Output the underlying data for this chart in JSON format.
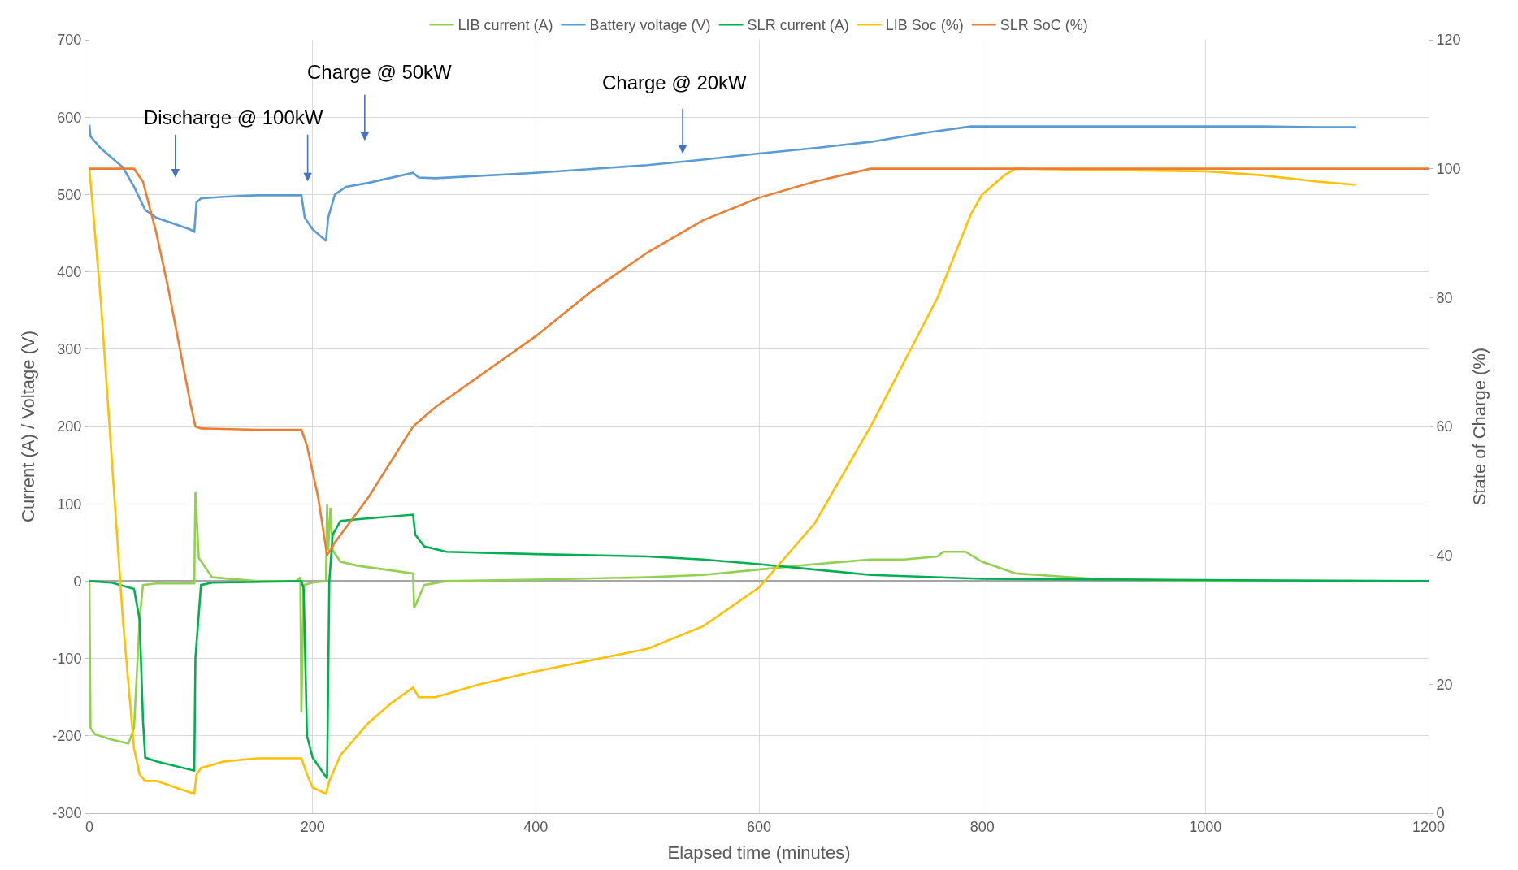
{
  "chart_data": {
    "type": "line",
    "xlabel": "Elapsed time (minutes)",
    "ylabel": "Current (A) / Voltage (V)",
    "y2label": "State of Charge (%)",
    "xlim": [
      0,
      1200
    ],
    "xticks": [
      0,
      200,
      400,
      600,
      800,
      1000,
      1200
    ],
    "ylim": [
      -300,
      700
    ],
    "yticks": [
      -300,
      -200,
      -100,
      0,
      100,
      200,
      300,
      400,
      500,
      600,
      700
    ],
    "y2lim": [
      0,
      120
    ],
    "y2ticks": [
      0,
      20,
      40,
      60,
      80,
      100,
      120
    ],
    "grid": true,
    "legend": "top",
    "line_style": "solid",
    "marker": "none",
    "series": [
      {
        "name": "LIB current (A)",
        "color": "#92d050",
        "x": [
          0,
          1,
          5,
          20,
          35,
          40,
          45,
          48,
          60,
          94,
          95,
          98,
          110,
          150,
          185,
          189,
          190,
          192,
          200,
          212,
          213,
          214,
          216,
          218,
          225,
          240,
          290,
          291,
          300,
          320,
          400,
          500,
          550,
          600,
          650,
          700,
          730,
          760,
          765,
          785,
          800,
          830,
          900,
          1000,
          1135
        ],
        "values": [
          0,
          -190,
          -198,
          -205,
          -210,
          -190,
          -50,
          -5,
          -3,
          -3,
          115,
          30,
          5,
          0,
          0,
          5,
          -170,
          -5,
          -2,
          0,
          100,
          40,
          95,
          40,
          25,
          20,
          10,
          -35,
          -5,
          0,
          2,
          5,
          8,
          15,
          22,
          28,
          28,
          32,
          38,
          38,
          25,
          10,
          3,
          0,
          0
        ]
      },
      {
        "name": "Battery voltage (V)",
        "color": "#5b9bd5",
        "x": [
          0,
          1,
          10,
          30,
          40,
          50,
          60,
          90,
          94,
          96,
          100,
          120,
          150,
          190,
          193,
          200,
          212,
          214,
          220,
          230,
          250,
          290,
          295,
          310,
          400,
          500,
          550,
          600,
          650,
          700,
          750,
          790,
          900,
          1000,
          1050,
          1100,
          1135
        ],
        "values": [
          590,
          575,
          560,
          535,
          510,
          480,
          470,
          455,
          452,
          490,
          495,
          497,
          499,
          499,
          470,
          455,
          440,
          470,
          500,
          510,
          515,
          528,
          522,
          521,
          528,
          538,
          545,
          553,
          560,
          568,
          580,
          588,
          588,
          588,
          588,
          587,
          587
        ]
      },
      {
        "name": "SLR current (A)",
        "color": "#00b050",
        "x": [
          0,
          20,
          40,
          45,
          48,
          50,
          60,
          94,
          95,
          100,
          110,
          190,
          192,
          195,
          200,
          213,
          215,
          218,
          225,
          240,
          290,
          292,
          300,
          320,
          400,
          500,
          550,
          600,
          650,
          700,
          800,
          1200
        ],
        "values": [
          0,
          -2,
          -10,
          -50,
          -180,
          -228,
          -233,
          -245,
          -100,
          -5,
          -2,
          0,
          -10,
          -200,
          -228,
          -255,
          0,
          60,
          78,
          80,
          86,
          60,
          45,
          38,
          35,
          32,
          28,
          22,
          15,
          8,
          3,
          0
        ]
      },
      {
        "name": "LIB Soc (%)",
        "color": "#ffc000",
        "axis": "y2",
        "x": [
          0,
          10,
          20,
          30,
          40,
          45,
          50,
          60,
          94,
          96,
          100,
          120,
          150,
          190,
          195,
          200,
          212,
          215,
          225,
          250,
          270,
          290,
          295,
          310,
          350,
          400,
          500,
          550,
          600,
          650,
          700,
          760,
          790,
          800,
          820,
          830,
          900,
          1000,
          1050,
          1100,
          1135
        ],
        "values": [
          100,
          80,
          55,
          30,
          10,
          6,
          5,
          5,
          3,
          6,
          7,
          8,
          8.5,
          8.5,
          6,
          4,
          3,
          5,
          9,
          14,
          17,
          19.5,
          18,
          18,
          20,
          22,
          25.5,
          29,
          35,
          45,
          60,
          80,
          93,
          96,
          99,
          100,
          99.8,
          99.6,
          99,
          98,
          97.5
        ]
      },
      {
        "name": "SLR SoC (%)",
        "color": "#ed7d31",
        "axis": "y2",
        "x": [
          0,
          40,
          48,
          60,
          70,
          80,
          90,
          95,
          100,
          150,
          190,
          195,
          205,
          213,
          220,
          250,
          290,
          310,
          400,
          450,
          500,
          550,
          600,
          650,
          700,
          1200
        ],
        "values": [
          100,
          100,
          98,
          90,
          82,
          73,
          64,
          60,
          59.7,
          59.5,
          59.5,
          57,
          49,
          40,
          42,
          49,
          60,
          63,
          74,
          81,
          87,
          92,
          95.5,
          98,
          100,
          100
        ]
      }
    ],
    "annotations": [
      "Discharge @ 100kW",
      "Charge @ 50kW",
      "Charge @ 20kW"
    ]
  }
}
